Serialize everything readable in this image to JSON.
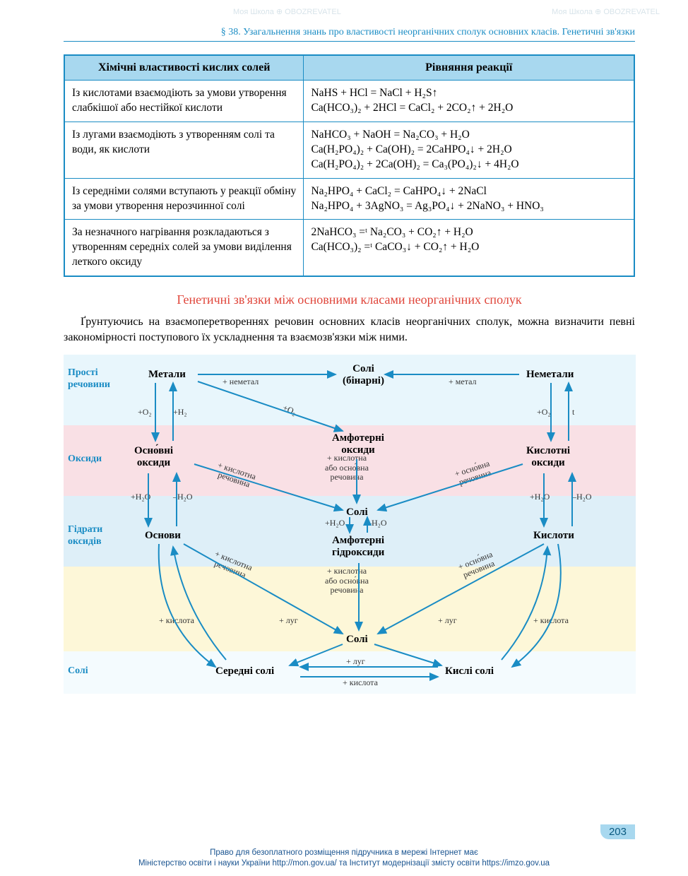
{
  "header": "§ 38. Узагальнення знань про властивості неорганічних сполук основних класів. Генетичні зв'язки",
  "table": {
    "col1_header": "Хімічні властивості кислих солей",
    "col2_header": "Рівняння реакції",
    "rows": [
      {
        "left": "Із кислотами взаємодіють за умови утворення слабкішої або нестійкої кислоти",
        "right": "NaHS + HCl = NaCl + H₂S↑\nCa(HCO₃)₂ + 2HCl = CaCl₂ + 2CO₂↑ + 2H₂O"
      },
      {
        "left": "Із лугами взаємодіють з утворенням солі та води, як кислоти",
        "right": "NaHCO₃ + NaOH = Na₂CO₃ + H₂O\nCa(H₂PO₄)₂ + Ca(OH)₂ = 2CaHPO₄↓ + 2H₂O\nCa(H₂PO₄)₂ + 2Ca(OH)₂ = Ca₃(PO₄)₂↓ + 4H₂O"
      },
      {
        "left": "Із середніми солями вступають у реакції обміну за умови утворення нерозчинної солі",
        "right": "Na₂HPO₄ + CaCl₂ = CaHPO₄↓ + 2NaCl\nNa₂HPO₄ + 3AgNO₃ = Ag₃PO₄↓ + 2NaNO₃ + HNO₃"
      },
      {
        "left": "За незначного нагрівання розкладаються з утворенням середніх солей за умови виділення леткого оксиду",
        "right": "2NaHCO₃ =ᵗ Na₂CO₃ + CO₂↑ + H₂O\nCa(HCO₃)₂ =ᵗ CaCO₃↓ + CO₂↑ + H₂O"
      }
    ]
  },
  "section_title": "Генетичні зв'язки між основними класами неорганічних сполук",
  "body_text": "Ґрунтуючись на взаємоперетвореннях речовин основних класів неорганічних сполук, можна визначити певні закономірності поступового їх ускладнення та взаємозв'язки між ними.",
  "diagram": {
    "row_labels": [
      "Прості речовини",
      "Оксиди",
      "Гідрати оксидів",
      "Солі"
    ],
    "nodes": {
      "metals": "Метали",
      "salts_bin": "Солі\n(бінарні)",
      "nonmetals": "Неметали",
      "basic_ox": "Осно́вні\nоксиди",
      "amph_ox": "Амфотерні\nоксиди",
      "acid_ox": "Кислотні\nоксиди",
      "bases": "Основи",
      "amph_hydr": "Амфотерні\nгідроксиди",
      "acids": "Кислоти",
      "salts_mid": "Солі",
      "salts_mid2": "Солі",
      "med_salts": "Середні солі",
      "acid_salts": "Кислі солі"
    },
    "edge_labels": {
      "plus_nonmetal": "+ неметал",
      "plus_metal": "+ метал",
      "plus_o2": "+O₂",
      "plus_h2": "+H₂",
      "t": "t",
      "plus_h2o": "+H₂O",
      "minus_h2o": "–H₂O",
      "plus_acid_sub": "+ кислотна\nречовина",
      "acid_or_base": "+ кислотна\nабо осно́вна\nречовина",
      "plus_base_sub": "+ осно́вна\nречовина",
      "plus_acid": "+ кислота",
      "plus_alkali": "+ луг"
    },
    "colors": {
      "arrow": "#1a8cc4",
      "band_top": "#e8f6fc",
      "band_pink": "#f9e0e5",
      "band_blue": "#deeff8",
      "band_yellow": "#fdf7d8",
      "band_bot": "#f4fbfe"
    }
  },
  "page_number": "203",
  "footer_line1": "Право для безоплатного розміщення підручника в мережі Інтернет має",
  "footer_line2": "Міністерство освіти і науки України http://mon.gov.ua/ та Інститут модернізації змісту освіти https://imzo.gov.ua",
  "watermark": "Моя Школа ⊕ OBOZREVATEL"
}
